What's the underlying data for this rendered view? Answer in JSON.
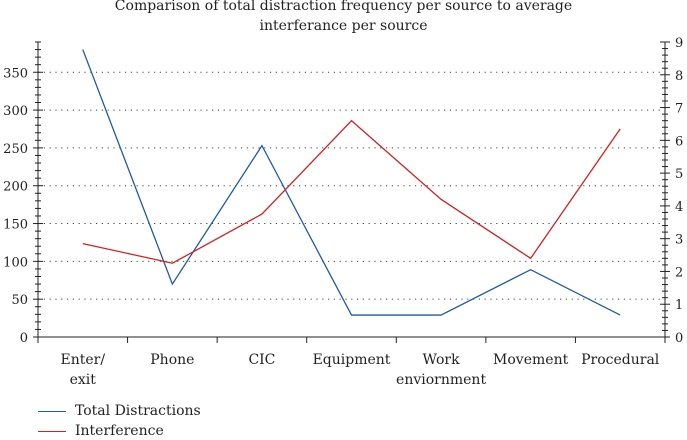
{
  "chart_data": {
    "type": "line",
    "title_line1": "Comparison of total distraction frequency per source to average",
    "title_line2": "interferance per source",
    "categories": [
      [
        "Enter/",
        "exit"
      ],
      [
        "Phone"
      ],
      [
        "CIC"
      ],
      [
        "Equipment"
      ],
      [
        "Work",
        "enviornment"
      ],
      [
        "Movement"
      ],
      [
        "Procedural"
      ]
    ],
    "y_left": {
      "lim": [
        0,
        390
      ],
      "ticks": [
        0,
        50,
        100,
        150,
        200,
        250,
        300,
        350
      ]
    },
    "y_right": {
      "lim": [
        0,
        9
      ],
      "ticks": [
        0,
        1,
        2,
        3,
        4,
        5,
        6,
        7,
        8,
        9
      ]
    },
    "grid": true,
    "series": [
      {
        "name": "Total Distractions",
        "axis": "left",
        "color": "#1f5aa8",
        "values": [
          380,
          70,
          253,
          29,
          29,
          89,
          29
        ]
      },
      {
        "name": "Interference",
        "axis": "right",
        "color": "#d42020",
        "values": [
          2.85,
          2.25,
          3.75,
          6.6,
          4.2,
          2.4,
          6.35
        ]
      }
    ],
    "legend_position": "bottom-left"
  }
}
